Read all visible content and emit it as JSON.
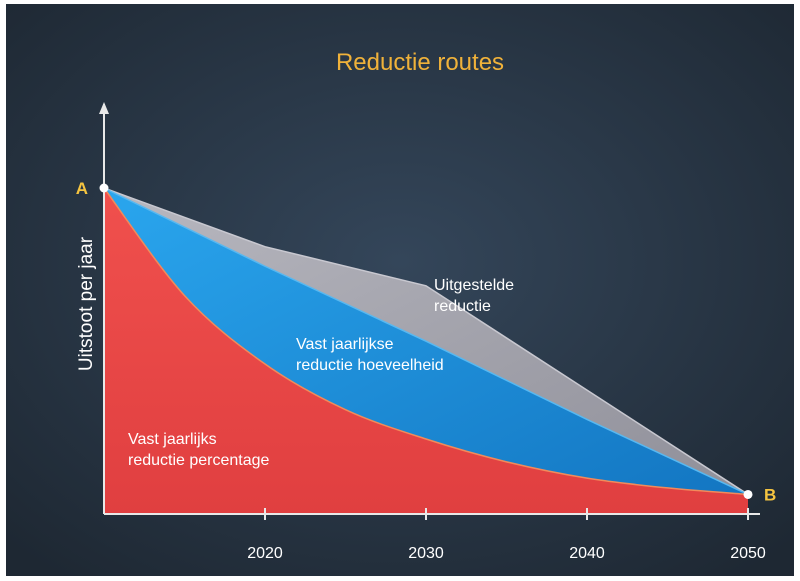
{
  "chart_data": {
    "type": "area",
    "title": "Reductie routes",
    "ylabel": "Uitstoot per jaar",
    "xlabel": "",
    "xlim": [
      2010,
      2050
    ],
    "ylim": [
      0,
      100
    ],
    "x_ticks": [
      "2020",
      "2030",
      "2040",
      "2050"
    ],
    "x_tick_values": [
      2020,
      2030,
      2040,
      2050
    ],
    "grid": false,
    "points": {
      "start": {
        "label": "A",
        "x": 2010,
        "y": 100
      },
      "end": {
        "label": "B",
        "x": 2050,
        "y": 6
      }
    },
    "series": [
      {
        "label_lines": [
          "Uitgestelde",
          "reductie"
        ],
        "color": "#a8a8b0",
        "x": [
          2010,
          2020,
          2030,
          2040,
          2050
        ],
        "y": [
          100,
          82,
          70,
          38,
          6
        ]
      },
      {
        "label_lines": [
          "Vast jaarlijkse",
          "reductie hoeveelheid"
        ],
        "color": "#1a8fd6",
        "x": [
          2010,
          2020,
          2030,
          2040,
          2050
        ],
        "y": [
          100,
          76,
          53,
          29,
          6
        ]
      },
      {
        "label_lines": [
          "Vast jaarlijks",
          "reductie percentage"
        ],
        "color": "#e64a4a",
        "x": [
          2010,
          2015,
          2020,
          2025,
          2030,
          2035,
          2040,
          2045,
          2050
        ],
        "y": [
          100,
          67,
          46,
          32,
          23,
          16,
          11,
          8,
          6
        ]
      }
    ],
    "colors": {
      "background": "#2a3845",
      "title": "#f0b23a",
      "axis": "#e8e8e8",
      "point_label": "#f5c440",
      "text": "#ffffff"
    }
  }
}
